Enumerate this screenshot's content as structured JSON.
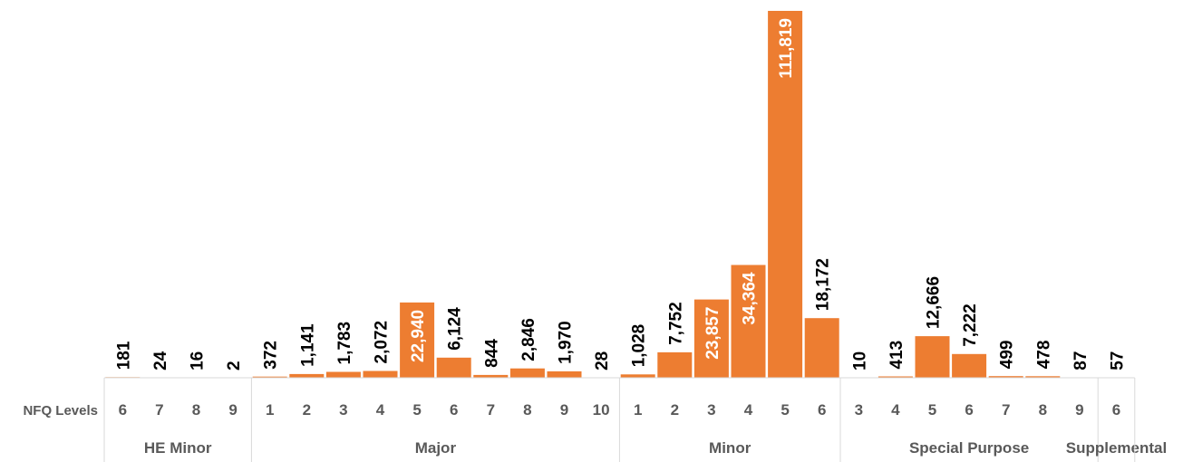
{
  "chart_data": {
    "type": "bar",
    "xlabel": "NFQ Levels",
    "bar_color": "#ED7D31",
    "label_color_outside": "#000000",
    "label_color_inside": "#FFFFFF",
    "groups": [
      {
        "name": "HE Minor",
        "levels": [
          "6",
          "7",
          "8",
          "9"
        ],
        "values": [
          181,
          24,
          16,
          2
        ]
      },
      {
        "name": "Major",
        "levels": [
          "1",
          "2",
          "3",
          "4",
          "5",
          "6",
          "7",
          "8",
          "9",
          "10"
        ],
        "values": [
          372,
          1141,
          1783,
          2072,
          22940,
          6124,
          844,
          2846,
          1970,
          28
        ]
      },
      {
        "name": "Minor",
        "levels": [
          "1",
          "2",
          "3",
          "4",
          "5",
          "6"
        ],
        "values": [
          1028,
          7752,
          23857,
          34364,
          111819,
          18172
        ]
      },
      {
        "name": "Special Purpose",
        "levels": [
          "3",
          "4",
          "5",
          "6",
          "7",
          "8",
          "9"
        ],
        "values": [
          10,
          413,
          12666,
          7222,
          499,
          478,
          87
        ]
      },
      {
        "name": "Supplemental",
        "levels": [
          "6"
        ],
        "values": [
          57
        ]
      }
    ]
  }
}
